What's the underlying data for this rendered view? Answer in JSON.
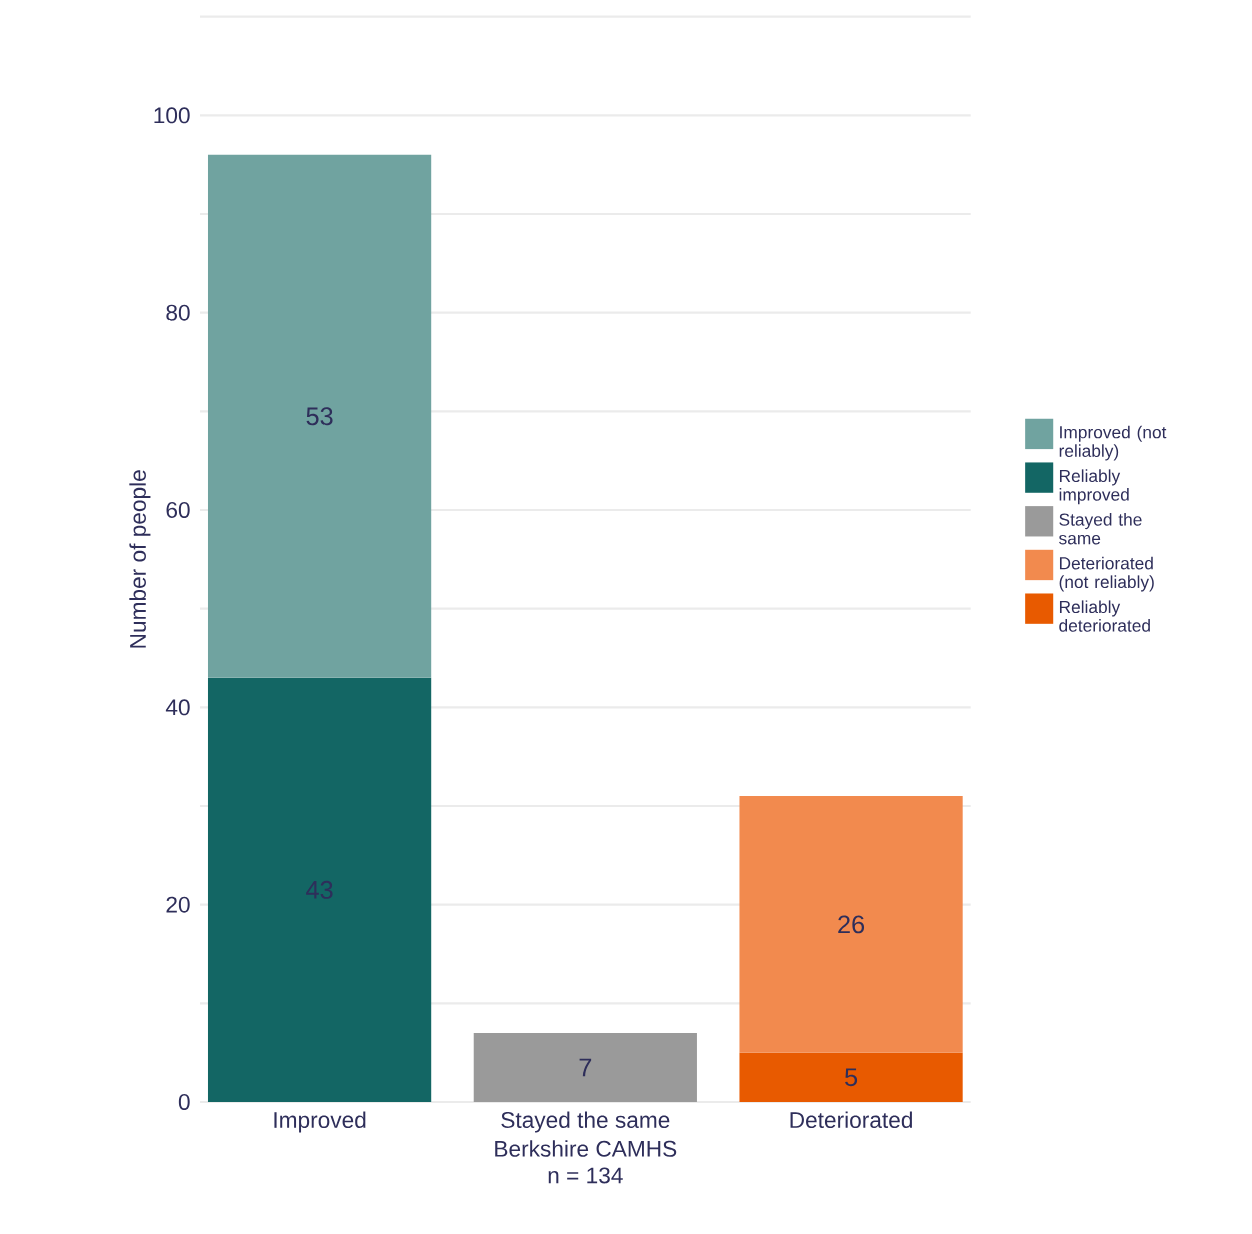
{
  "chart_data": {
    "type": "bar",
    "stacked": true,
    "categories": [
      "Improved",
      "Stayed the same",
      "Deteriorated"
    ],
    "xlabel": "Berkshire CAMHS",
    "ylabel": "Number of people",
    "annotations": [
      "n = 134"
    ],
    "series": [
      {
        "name": "Reliably deteriorated",
        "color": "#e85a00",
        "values": [
          null,
          null,
          5
        ]
      },
      {
        "name": "Deteriorated (not reliably)",
        "color": "#f28a4e",
        "values": [
          null,
          null,
          26
        ]
      },
      {
        "name": "Stayed the same",
        "color": "#9a9a9a",
        "values": [
          null,
          7,
          null
        ]
      },
      {
        "name": "Reliably improved",
        "color": "#136664",
        "values": [
          43,
          null,
          null
        ]
      },
      {
        "name": "Improved (not reliably)",
        "color": "#70a3a0",
        "values": [
          53,
          null,
          null
        ]
      }
    ],
    "ylim": [
      0,
      110
    ],
    "yticks": [
      0,
      {
        "value": 10,
        "label": null
      },
      20,
      {
        "value": 30,
        "label": null
      },
      40,
      {
        "value": 50,
        "label": null
      },
      60,
      {
        "value": 70,
        "label": null
      },
      80,
      {
        "value": 90,
        "label": null
      },
      100,
      {
        "value": 110,
        "label": null
      }
    ],
    "grid": "y",
    "legend": "right",
    "data_labels": true
  }
}
